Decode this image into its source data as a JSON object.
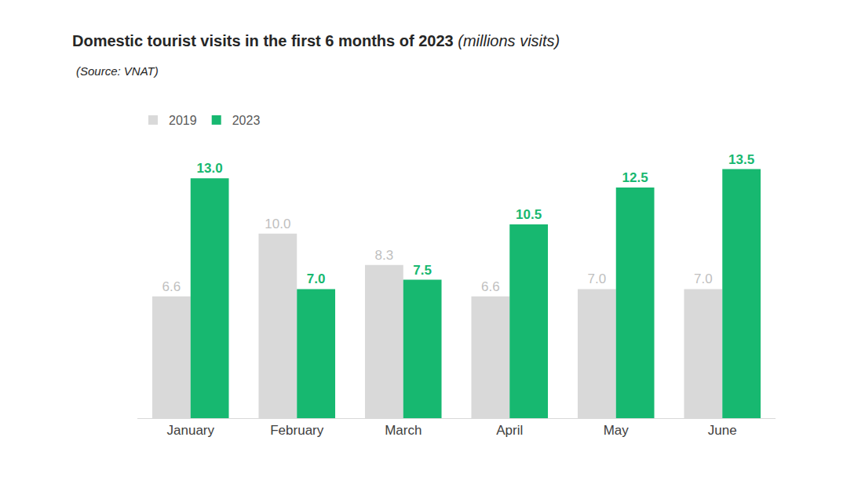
{
  "chart_data": {
    "type": "bar",
    "title": "Domestic tourist visits in the first 6 months of 2023 (millions visits)",
    "subtitle": "(Source: VNAT)",
    "categories": [
      "January",
      "February",
      "March",
      "April",
      "May",
      "June"
    ],
    "series": [
      {
        "name": "2019",
        "color": "#d9d9d9",
        "values": [
          6.6,
          10.0,
          8.3,
          6.6,
          7.0,
          7.0
        ],
        "value_labels": [
          "6.6",
          "10.0",
          "8.3",
          "6.6",
          "7.0",
          "7.0"
        ]
      },
      {
        "name": "2023",
        "color": "#17b870",
        "values": [
          13.0,
          7.0,
          7.5,
          10.5,
          12.5,
          13.5
        ],
        "value_labels": [
          "13.0",
          "7.0",
          "7.5",
          "10.5",
          "12.5",
          "13.5"
        ]
      }
    ],
    "ylim": [
      0,
      14.5
    ],
    "grid": false,
    "legend": "top left",
    "data_labels": true,
    "tick_labels": "x"
  }
}
